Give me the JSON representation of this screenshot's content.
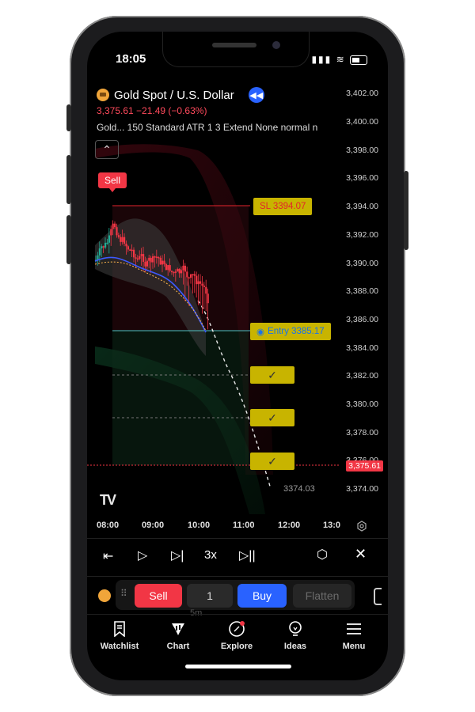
{
  "status_bar": {
    "time": "18:05"
  },
  "symbol": {
    "title": "Gold Spot / U.S. Dollar",
    "price_line": "3,375.61  −21.49 (−0.63%)",
    "indicator_line": "Gold...  150 Standard ATR 1 3 Extend None normal n",
    "replay_icon": "rewind-icon"
  },
  "chart": {
    "sell_tag": "Sell",
    "sl_label": "SL 3394.07",
    "entry_label": "Entry 3385.17",
    "tp_check": "✓",
    "last_price": "3,375.61",
    "projected_price": "3374.03",
    "y_ticks": [
      "3,402.00",
      "3,400.00",
      "3,398.00",
      "3,396.00",
      "3,394.00",
      "3,392.00",
      "3,390.00",
      "3,388.00",
      "3,386.00",
      "3,384.00",
      "3,382.00",
      "3,380.00",
      "3,378.00",
      "3,376.00",
      "3,374.00"
    ],
    "x_ticks": [
      "08:00",
      "09:00",
      "10:00",
      "11:00",
      "12:00",
      "13:0"
    ]
  },
  "replay_controls": {
    "speed": "3x"
  },
  "trade_panel": {
    "sell": "Sell",
    "quantity": "1",
    "buy": "Buy",
    "flatten": "Flatten",
    "interval_hint": "5m"
  },
  "tabs": [
    {
      "label": "Watchlist",
      "icon": "bookmark-icon"
    },
    {
      "label": "Chart",
      "icon": "chart-icon"
    },
    {
      "label": "Explore",
      "icon": "compass-icon"
    },
    {
      "label": "Ideas",
      "icon": "lightbulb-icon"
    },
    {
      "label": "Menu",
      "icon": "menu-icon"
    }
  ],
  "colors": {
    "sell": "#f23645",
    "buy": "#2962ff",
    "level_label": "#c8b400",
    "candle_down": "#f23645",
    "candle_up": "#22ab94"
  }
}
